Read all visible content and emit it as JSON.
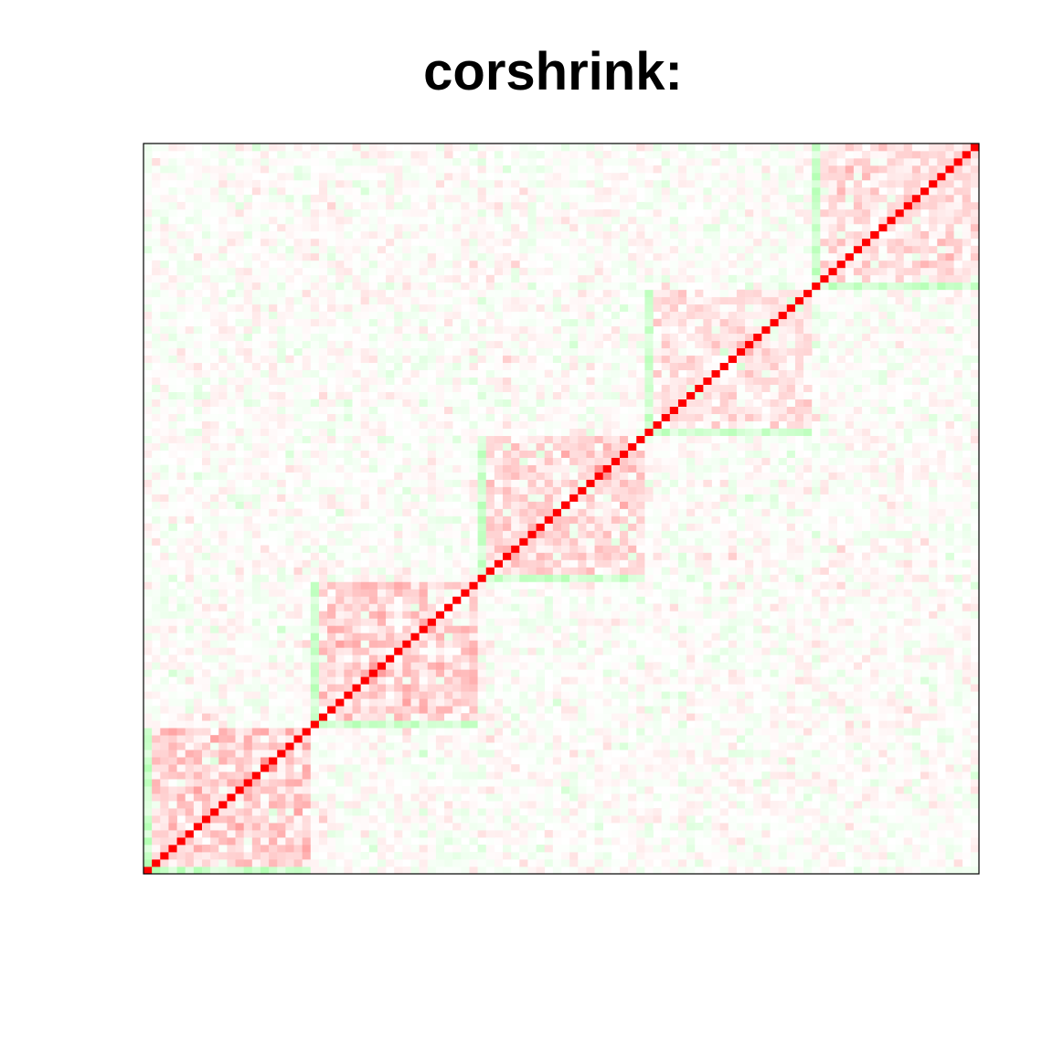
{
  "chart_data": {
    "type": "heatmap",
    "title": "corshrink:",
    "xlabel": "",
    "ylabel": "",
    "n": 100,
    "grid": false,
    "legend": "none",
    "color_scale": {
      "high": "#ff0000",
      "mid": "#ffffff",
      "low": "#00ff00",
      "range": [
        -1,
        1
      ]
    },
    "diagonal_value": 1.0,
    "blocks": [
      {
        "start": 0,
        "end": 19,
        "within_correlation": 0.15
      },
      {
        "start": 20,
        "end": 39,
        "within_correlation": 0.15
      },
      {
        "start": 40,
        "end": 59,
        "within_correlation": 0.12
      },
      {
        "start": 60,
        "end": 79,
        "within_correlation": 0.08
      },
      {
        "start": 80,
        "end": 99,
        "within_correlation": 0.1
      }
    ],
    "block_edge_correlation": -0.25,
    "background_noise_sd": 0.05
  }
}
